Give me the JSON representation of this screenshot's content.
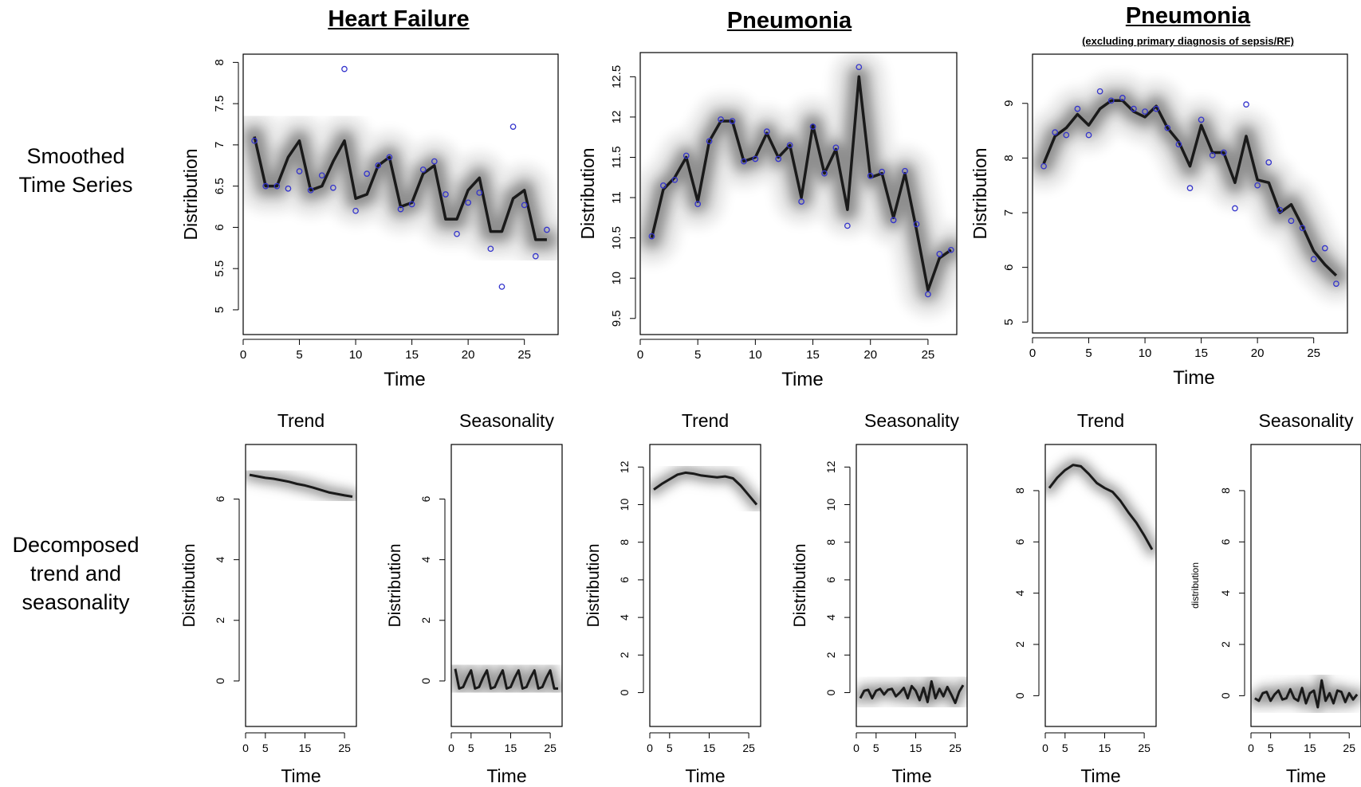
{
  "row_labels": {
    "top": [
      "Smoothed",
      "Time Series"
    ],
    "bottom": [
      "Decomposed",
      "trend and",
      "seasonality"
    ]
  },
  "titles": [
    {
      "text": "Heart Failure",
      "sub": ""
    },
    {
      "text": "Pneumonia",
      "sub": ""
    },
    {
      "text": "Pneumonia",
      "sub": "(excluding primary diagnosis of sepsis/RF)"
    }
  ],
  "colors": {
    "line": "#1a1a1a",
    "point": "#3333cc",
    "axis": "#000000"
  },
  "chart_data": [
    {
      "type": "line",
      "title": "Heart Failure",
      "xlabel": "Time",
      "ylabel": "Distribution",
      "xlim": [
        0,
        28
      ],
      "ylim": [
        4.7,
        8.1
      ],
      "xticks": [
        0,
        5,
        10,
        15,
        20,
        25
      ],
      "yticks": [
        5.0,
        5.5,
        6.0,
        6.5,
        7.0,
        7.5,
        8.0
      ],
      "series": [
        {
          "x": [
            1,
            2,
            3,
            4,
            5,
            6,
            7,
            8,
            9,
            10,
            11,
            12,
            13,
            14,
            15,
            16,
            17,
            18,
            19,
            20,
            21,
            22,
            23,
            24,
            25,
            26,
            27
          ],
          "values": [
            7.1,
            6.5,
            6.5,
            6.85,
            7.05,
            6.45,
            6.5,
            6.8,
            7.05,
            6.35,
            6.4,
            6.75,
            6.85,
            6.25,
            6.3,
            6.65,
            6.75,
            6.1,
            6.1,
            6.45,
            6.6,
            5.95,
            5.95,
            6.35,
            6.45,
            5.85,
            5.85
          ]
        }
      ],
      "points": {
        "x": [
          1,
          2,
          3,
          4,
          5,
          6,
          7,
          8,
          9,
          10,
          11,
          12,
          13,
          14,
          15,
          16,
          17,
          18,
          19,
          20,
          21,
          22,
          23,
          24,
          25,
          26,
          27
        ],
        "values": [
          7.05,
          6.5,
          6.5,
          6.47,
          6.68,
          6.45,
          6.63,
          6.48,
          7.92,
          6.2,
          6.65,
          6.75,
          6.85,
          6.22,
          6.28,
          6.7,
          6.8,
          6.4,
          5.92,
          6.3,
          6.42,
          5.74,
          5.28,
          7.22,
          6.27,
          5.65,
          5.97
        ]
      }
    },
    {
      "type": "line",
      "title": "Pneumonia",
      "xlabel": "Time",
      "ylabel": "Distribution",
      "xlim": [
        0,
        27.5
      ],
      "ylim": [
        9.3,
        12.8
      ],
      "xticks": [
        0,
        5,
        10,
        15,
        20,
        25
      ],
      "yticks": [
        9.5,
        10.0,
        10.5,
        11.0,
        11.5,
        12.0,
        12.5
      ],
      "series": [
        {
          "x": [
            1,
            2,
            3,
            4,
            5,
            6,
            7,
            8,
            9,
            10,
            11,
            12,
            13,
            14,
            15,
            16,
            17,
            18,
            19,
            20,
            21,
            22,
            23,
            24,
            25,
            26,
            27
          ],
          "values": [
            10.5,
            11.1,
            11.25,
            11.5,
            10.95,
            11.7,
            11.95,
            11.95,
            11.45,
            11.5,
            11.8,
            11.5,
            11.65,
            11.0,
            11.9,
            11.3,
            11.6,
            10.85,
            12.5,
            11.25,
            11.3,
            10.75,
            11.3,
            10.6,
            9.85,
            10.25,
            10.35
          ]
        }
      ],
      "points": {
        "x": [
          1,
          2,
          3,
          4,
          5,
          6,
          7,
          8,
          9,
          10,
          11,
          12,
          13,
          14,
          15,
          16,
          17,
          18,
          19,
          20,
          21,
          22,
          23,
          24,
          25,
          26,
          27
        ],
        "values": [
          10.52,
          11.15,
          11.22,
          11.52,
          10.92,
          11.7,
          11.97,
          11.95,
          11.45,
          11.48,
          11.82,
          11.48,
          11.65,
          10.95,
          11.88,
          11.3,
          11.62,
          10.65,
          12.62,
          11.27,
          11.32,
          10.72,
          11.33,
          10.67,
          9.8,
          10.3,
          10.35
        ]
      }
    },
    {
      "type": "line",
      "title": "Pneumonia",
      "xlabel": "Time",
      "ylabel": "Distribution",
      "xlim": [
        0,
        28
      ],
      "ylim": [
        4.8,
        9.9
      ],
      "xticks": [
        0,
        5,
        10,
        15,
        20,
        25
      ],
      "yticks": [
        5,
        6,
        7,
        8,
        9
      ],
      "series": [
        {
          "x": [
            1,
            2,
            3,
            4,
            5,
            6,
            7,
            8,
            9,
            10,
            11,
            12,
            13,
            14,
            15,
            16,
            17,
            18,
            19,
            20,
            21,
            22,
            23,
            24,
            25,
            26,
            27
          ],
          "values": [
            7.9,
            8.4,
            8.55,
            8.8,
            8.6,
            8.9,
            9.05,
            9.05,
            8.85,
            8.75,
            8.95,
            8.55,
            8.3,
            7.85,
            8.6,
            8.1,
            8.1,
            7.55,
            8.4,
            7.6,
            7.55,
            7.0,
            7.15,
            6.75,
            6.3,
            6.05,
            5.85
          ]
        }
      ],
      "points": {
        "x": [
          1,
          2,
          3,
          4,
          5,
          6,
          7,
          8,
          9,
          10,
          11,
          12,
          13,
          14,
          15,
          16,
          17,
          18,
          19,
          20,
          21,
          22,
          23,
          24,
          25,
          26,
          27
        ],
        "values": [
          7.85,
          8.47,
          8.42,
          8.9,
          8.42,
          9.22,
          9.05,
          9.1,
          8.9,
          8.85,
          8.9,
          8.55,
          8.25,
          7.45,
          8.7,
          8.05,
          8.1,
          7.08,
          8.98,
          7.5,
          7.92,
          7.05,
          6.85,
          6.72,
          6.15,
          6.35,
          5.7
        ]
      }
    },
    {
      "type": "line",
      "title": "Trend",
      "xlabel": "Time",
      "ylabel": "Distribution",
      "xlim": [
        0,
        28
      ],
      "ylim": [
        -1.5,
        7.8
      ],
      "xticks": [
        0,
        5,
        15,
        25
      ],
      "yticks": [
        0,
        2,
        4,
        6
      ],
      "series": [
        {
          "x": [
            1,
            3,
            5,
            7,
            9,
            11,
            13,
            15,
            17,
            19,
            21,
            23,
            25,
            27
          ],
          "values": [
            6.8,
            6.75,
            6.7,
            6.67,
            6.62,
            6.57,
            6.5,
            6.45,
            6.38,
            6.3,
            6.22,
            6.17,
            6.12,
            6.08
          ]
        }
      ]
    },
    {
      "type": "line",
      "title": "Seasonality",
      "xlabel": "Time",
      "ylabel": "Distribution",
      "xlim": [
        0,
        28
      ],
      "ylim": [
        -1.5,
        7.8
      ],
      "xticks": [
        0,
        5,
        15,
        25
      ],
      "yticks": [
        0,
        2,
        4,
        6
      ],
      "series": [
        {
          "x": [
            1,
            2,
            3,
            4,
            5,
            6,
            7,
            8,
            9,
            10,
            11,
            12,
            13,
            14,
            15,
            16,
            17,
            18,
            19,
            20,
            21,
            22,
            23,
            24,
            25,
            26,
            27
          ],
          "values": [
            0.4,
            -0.25,
            -0.2,
            0.1,
            0.35,
            -0.25,
            -0.2,
            0.1,
            0.35,
            -0.25,
            -0.2,
            0.1,
            0.35,
            -0.25,
            -0.2,
            0.1,
            0.35,
            -0.25,
            -0.2,
            0.1,
            0.35,
            -0.25,
            -0.2,
            0.1,
            0.35,
            -0.25,
            -0.25
          ]
        }
      ]
    },
    {
      "type": "line",
      "title": "Trend",
      "xlabel": "Time",
      "ylabel": "Distribution",
      "xlim": [
        0,
        28
      ],
      "ylim": [
        -1.8,
        13.2
      ],
      "xticks": [
        0,
        5,
        15,
        25
      ],
      "yticks": [
        0,
        2,
        4,
        6,
        8,
        10,
        12
      ],
      "series": [
        {
          "x": [
            1,
            3,
            5,
            7,
            9,
            11,
            13,
            15,
            17,
            19,
            21,
            23,
            25,
            27
          ],
          "values": [
            10.8,
            11.1,
            11.35,
            11.6,
            11.7,
            11.65,
            11.55,
            11.5,
            11.45,
            11.5,
            11.4,
            11.0,
            10.5,
            10.0
          ]
        }
      ]
    },
    {
      "type": "line",
      "title": "Seasonality",
      "xlabel": "Time",
      "ylabel": "Distribution",
      "xlim": [
        0,
        28
      ],
      "ylim": [
        -1.8,
        13.2
      ],
      "xticks": [
        0,
        5,
        15,
        25
      ],
      "yticks": [
        0,
        2,
        4,
        6,
        8,
        10,
        12
      ],
      "series": [
        {
          "x": [
            1,
            2,
            3,
            4,
            5,
            6,
            7,
            8,
            9,
            10,
            11,
            12,
            13,
            14,
            15,
            16,
            17,
            18,
            19,
            20,
            21,
            22,
            23,
            24,
            25,
            26,
            27
          ],
          "values": [
            -0.3,
            0.1,
            0.15,
            -0.3,
            0.1,
            0.2,
            -0.1,
            0.15,
            0.2,
            -0.2,
            0.0,
            0.25,
            -0.3,
            0.35,
            0.1,
            -0.4,
            0.25,
            -0.5,
            0.6,
            -0.3,
            0.2,
            -0.2,
            0.3,
            -0.1,
            -0.55,
            0.05,
            0.4
          ]
        }
      ]
    },
    {
      "type": "line",
      "title": "Trend",
      "xlabel": "Time",
      "ylabel": "",
      "xlim": [
        0,
        28
      ],
      "ylim": [
        -1.2,
        9.8
      ],
      "xticks": [
        0,
        5,
        15,
        25
      ],
      "yticks": [
        0,
        2,
        4,
        6,
        8
      ],
      "series": [
        {
          "x": [
            1,
            3,
            5,
            7,
            9,
            11,
            13,
            15,
            17,
            19,
            21,
            23,
            25,
            27
          ],
          "values": [
            8.1,
            8.5,
            8.8,
            9.0,
            8.95,
            8.65,
            8.3,
            8.1,
            7.95,
            7.6,
            7.15,
            6.75,
            6.25,
            5.7
          ]
        }
      ]
    },
    {
      "type": "line",
      "title": "Seasonality",
      "xlabel": "Time",
      "ylabel": "distribution",
      "xlim": [
        0,
        28
      ],
      "ylim": [
        -1.2,
        9.8
      ],
      "xticks": [
        0,
        5,
        15,
        25
      ],
      "yticks": [
        0,
        2,
        4,
        6,
        8
      ],
      "series": [
        {
          "x": [
            1,
            2,
            3,
            4,
            5,
            6,
            7,
            8,
            9,
            10,
            11,
            12,
            13,
            14,
            15,
            16,
            17,
            18,
            19,
            20,
            21,
            22,
            23,
            24,
            25,
            26,
            27
          ],
          "values": [
            -0.1,
            -0.2,
            0.1,
            0.15,
            -0.2,
            0.05,
            0.2,
            -0.15,
            -0.1,
            0.25,
            -0.1,
            -0.2,
            0.3,
            -0.3,
            0.1,
            0.2,
            -0.45,
            0.6,
            -0.2,
            0.1,
            -0.3,
            0.2,
            0.15,
            -0.25,
            0.1,
            -0.15,
            0.05
          ]
        }
      ]
    }
  ]
}
